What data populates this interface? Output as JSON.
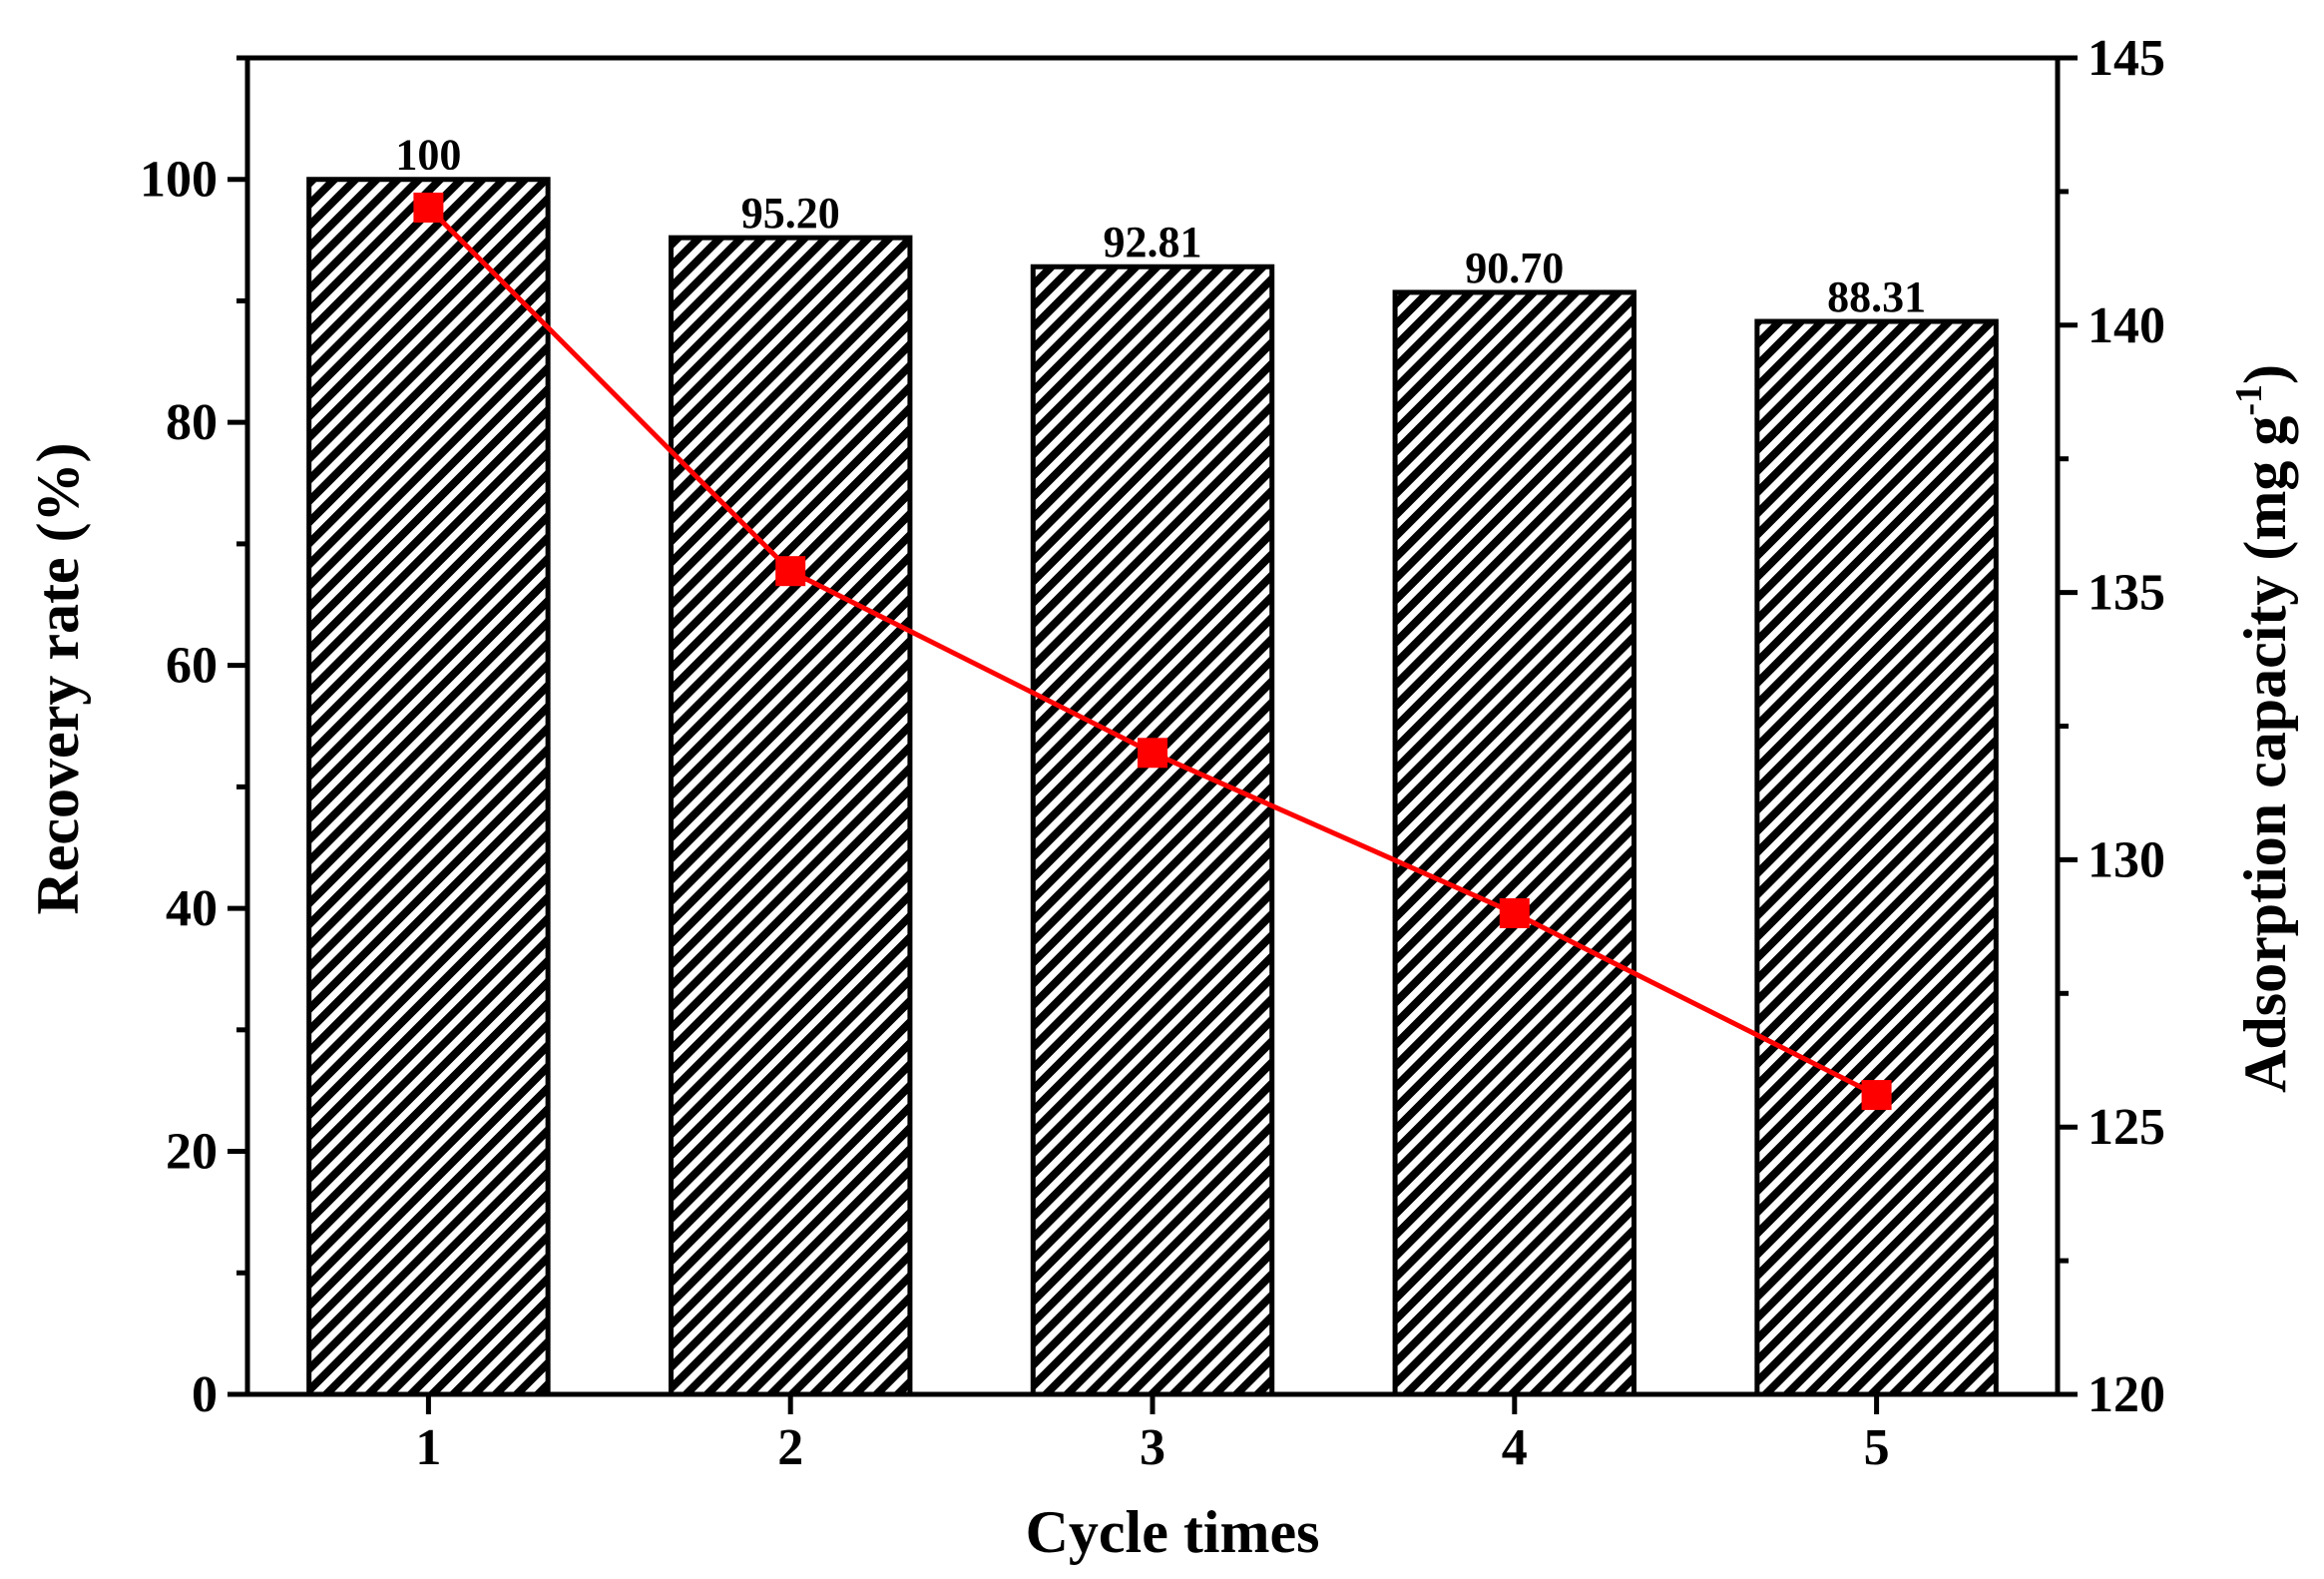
{
  "chart_data": {
    "type": "bar",
    "categories": [
      "1",
      "2",
      "3",
      "4",
      "5"
    ],
    "series": [
      {
        "type": "bar",
        "axis": "left",
        "values": [
          100,
          95.2,
          92.81,
          90.7,
          88.31
        ],
        "value_labels": [
          "100",
          "95.20",
          "92.81",
          "90.70",
          "88.31"
        ],
        "fill": "diagonal-hatch",
        "color": "#000000"
      },
      {
        "type": "line",
        "axis": "right",
        "marker": "square",
        "values": [
          142.2,
          135.4,
          132.0,
          129.0,
          125.6
        ],
        "color": "#ff0000"
      }
    ],
    "xlabel": "Cycle times",
    "ylabel": "Recovery rate (%)",
    "y2label": "Adsorption capacity (mg g",
    "y2label_superscript": "-1",
    "y2label_suffix": ")",
    "ylim": [
      0,
      110
    ],
    "y2lim": [
      120,
      145
    ],
    "yticks": [
      0,
      20,
      40,
      60,
      80,
      100
    ],
    "y2ticks": [
      120,
      125,
      130,
      135,
      140,
      145
    ],
    "grid": false,
    "legend": "none"
  }
}
